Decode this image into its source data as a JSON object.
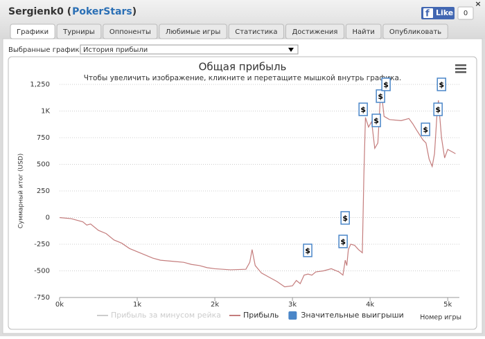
{
  "header": {
    "title": [
      "Sergienk0 (",
      "PokerStars",
      ")"
    ],
    "like": "Like",
    "like_count": "0",
    "close": "×"
  },
  "tabs": [
    "Графики",
    "Турниры",
    "Оппоненты",
    "Любимые игры",
    "Статистика",
    "Достижения",
    "Найти",
    "Опубликовать"
  ],
  "selector": {
    "label": "Выбранные графики:",
    "value": "История прибыли"
  },
  "chart_data": {
    "type": "line",
    "title": "Общая прибыль",
    "subtitle": "Чтобы увеличить изображение, кликните и перетащите мышкой внутрь графика.",
    "y_label": "Суммарный итог (USD)",
    "x_label": "Номер игры",
    "xlim": [
      0,
      5150
    ],
    "ylim": [
      -750,
      1250
    ],
    "xticks": [
      {
        "value": 0,
        "label": "0k"
      },
      {
        "value": 1000,
        "label": "1k"
      },
      {
        "value": 2000,
        "label": "2k"
      },
      {
        "value": 3000,
        "label": "3k"
      },
      {
        "value": 4000,
        "label": "4k"
      },
      {
        "value": 5000,
        "label": "5k"
      }
    ],
    "yticks": [
      -750,
      -500,
      -250,
      0,
      250,
      500,
      750,
      {
        "value": 1000,
        "label": "1K"
      },
      {
        "value": 1250,
        "label": "1,250"
      }
    ],
    "grid": true,
    "x": [
      0,
      150,
      300,
      350,
      400,
      500,
      600,
      700,
      800,
      900,
      1000,
      1100,
      1200,
      1300,
      1450,
      1600,
      1700,
      1800,
      1900,
      2000,
      2200,
      2400,
      2450,
      2480,
      2520,
      2600,
      2700,
      2800,
      2900,
      3000,
      3050,
      3100,
      3150,
      3200,
      3250,
      3300,
      3400,
      3500,
      3600,
      3650,
      3680,
      3700,
      3720,
      3750,
      3800,
      3850,
      3900,
      3920,
      3940,
      3980,
      4020,
      4060,
      4100,
      4130,
      4150,
      4180,
      4250,
      4400,
      4500,
      4550,
      4600,
      4680,
      4720,
      4760,
      4800,
      4830,
      4860,
      4880,
      4920,
      4960,
      5000,
      5050,
      5100
    ],
    "series": [
      {
        "name": "Прибыль за минусом рейка",
        "color": "#cccccc",
        "values": null
      },
      {
        "name": "Прибыль",
        "color": "#c47c7c",
        "values": [
          0,
          -10,
          -40,
          -70,
          -60,
          -120,
          -150,
          -210,
          -240,
          -290,
          -320,
          -350,
          -380,
          -400,
          -410,
          -420,
          -440,
          -450,
          -470,
          -480,
          -490,
          -485,
          -420,
          -300,
          -450,
          -520,
          -560,
          -600,
          -650,
          -640,
          -590,
          -620,
          -540,
          -530,
          -540,
          -510,
          -500,
          -480,
          -510,
          -540,
          -400,
          -450,
          -300,
          -250,
          -260,
          -300,
          -330,
          400,
          940,
          850,
          900,
          650,
          700,
          1100,
          1150,
          950,
          920,
          910,
          930,
          880,
          820,
          730,
          700,
          550,
          480,
          600,
          950,
          1100,
          750,
          560,
          640,
          620,
          600
        ]
      }
    ],
    "flags": {
      "name": "Значительные выигрыши",
      "color": "#4a86c8",
      "label": "$",
      "x": [
        3196,
        3652,
        3679,
        3911,
        4080,
        4134,
        4205,
        4714,
        4875,
        4920
      ],
      "values": [
        -308,
        -224,
        -3,
        1016,
        912,
        1140,
        1250,
        828,
        1016,
        1250
      ]
    }
  }
}
